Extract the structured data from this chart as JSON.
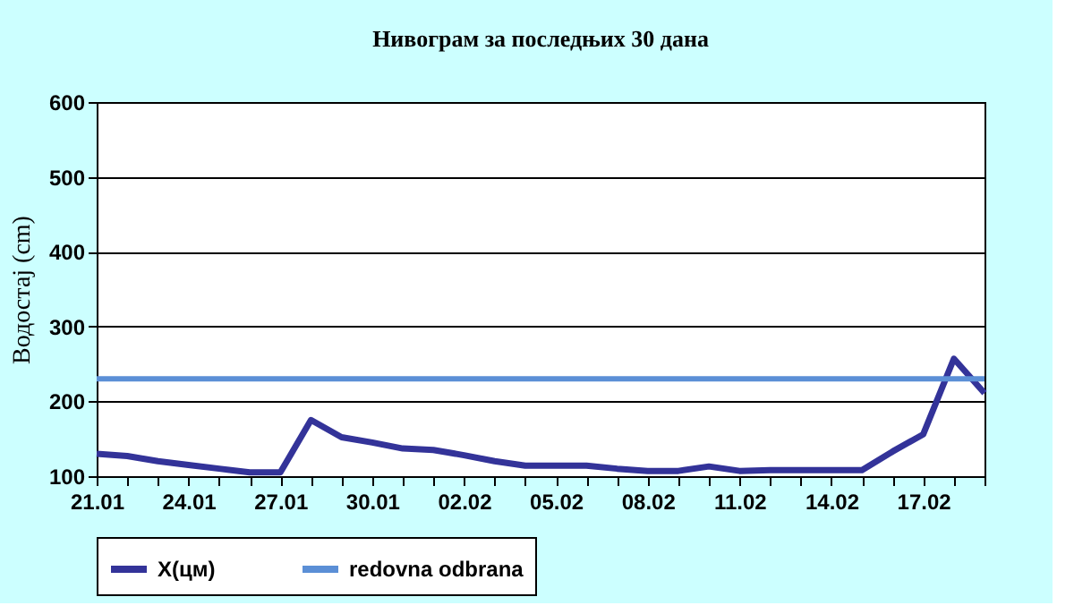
{
  "chart_data": {
    "type": "line",
    "title": "Нивограм за последњих 30 дана",
    "ylabel": "Водостај (cm)",
    "categories": [
      "21.01",
      null,
      null,
      "24.01",
      null,
      null,
      "27.01",
      null,
      null,
      "30.01",
      null,
      null,
      "02.02",
      null,
      null,
      "05.02",
      null,
      null,
      "08.02",
      null,
      null,
      "11.02",
      null,
      null,
      "14.02",
      null,
      null,
      "17.02",
      null,
      null
    ],
    "series": [
      {
        "name": "X(цм)",
        "color": "#333399",
        "values": [
          130,
          127,
          120,
          115,
          110,
          105,
          105,
          175,
          152,
          145,
          137,
          135,
          128,
          120,
          114,
          114,
          114,
          110,
          107,
          107,
          113,
          107,
          108,
          108,
          108,
          108,
          133,
          156,
          257,
          211
        ]
      }
    ],
    "ref_lines": [
      {
        "axis": "y",
        "value": 230,
        "label": "redovna odbrana",
        "color": "#5b8fd6"
      }
    ],
    "ylim": [
      100,
      600
    ],
    "yticks": [
      100,
      200,
      300,
      400,
      500,
      600
    ],
    "grid": "y",
    "legend": "bottom",
    "marker": "none",
    "line_style": "solid"
  }
}
